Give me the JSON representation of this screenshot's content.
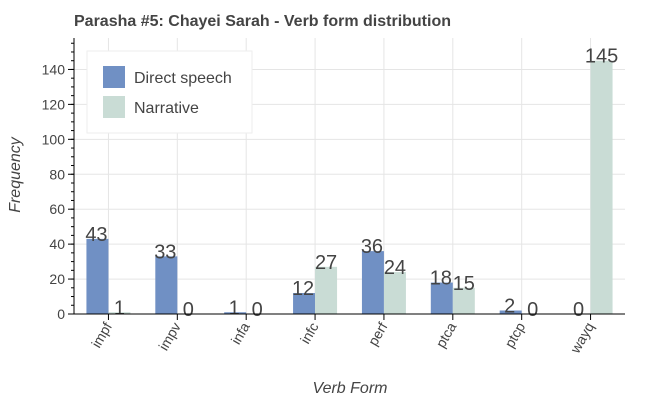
{
  "chart_data": {
    "type": "bar",
    "title": "Parasha #5: Chayei Sarah - Verb form distribution",
    "xlabel": "Verb Form",
    "ylabel": "Frequency",
    "categories": [
      "impf",
      "impv",
      "infa",
      "infc",
      "perf",
      "ptca",
      "ptcp",
      "wayq"
    ],
    "series": [
      {
        "name": "Direct speech",
        "color": "#7090c4",
        "values": [
          43,
          33,
          1,
          12,
          36,
          18,
          2,
          0
        ]
      },
      {
        "name": "Narrative",
        "color": "#c9dcd5",
        "values": [
          1,
          0,
          0,
          27,
          24,
          15,
          0,
          145
        ]
      }
    ],
    "ylim": [
      0,
      158
    ],
    "yticks": [
      0,
      20,
      40,
      60,
      80,
      100,
      120,
      140
    ],
    "grid": true,
    "legend": "top-left"
  }
}
